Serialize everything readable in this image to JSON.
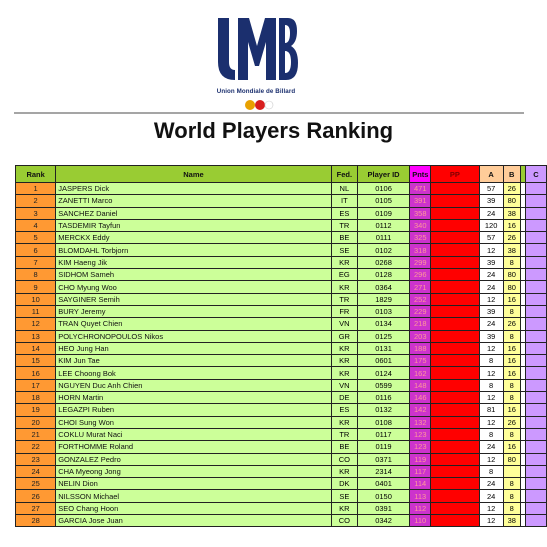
{
  "header": {
    "logo_text": "Union Mondiale de Billard",
    "logo_letters": "UMB",
    "title": "World Players Ranking"
  },
  "table": {
    "columns": [
      "Rank",
      "Name",
      "Fed.",
      "Player ID",
      "Pnts",
      "PP",
      "A",
      "B",
      "C"
    ],
    "rows": [
      {
        "rank": "1",
        "name": "JASPERS Dick",
        "fed": "NL",
        "id": "0106",
        "pnts": "471",
        "a": "57",
        "b": "26"
      },
      {
        "rank": "2",
        "name": "ZANETTI Marco",
        "fed": "IT",
        "id": "0105",
        "pnts": "391",
        "a": "39",
        "b": "80"
      },
      {
        "rank": "3",
        "name": "SANCHEZ Daniel",
        "fed": "ES",
        "id": "0109",
        "pnts": "358",
        "a": "24",
        "b": "38"
      },
      {
        "rank": "4",
        "name": "TASDEMIR Tayfun",
        "fed": "TR",
        "id": "0112",
        "pnts": "340",
        "a": "120",
        "b": "16"
      },
      {
        "rank": "5",
        "name": "MERCKX Eddy",
        "fed": "BE",
        "id": "0111",
        "pnts": "325",
        "a": "57",
        "b": "26"
      },
      {
        "rank": "6",
        "name": "BLOMDAHL Torbjorn",
        "fed": "SE",
        "id": "0102",
        "pnts": "318",
        "a": "12",
        "b": "38"
      },
      {
        "rank": "7",
        "name": "KIM Haeng Jik",
        "fed": "KR",
        "id": "0268",
        "pnts": "299",
        "a": "39",
        "b": "8"
      },
      {
        "rank": "8",
        "name": "SIDHOM Sameh",
        "fed": "EG",
        "id": "0128",
        "pnts": "296",
        "a": "24",
        "b": "80"
      },
      {
        "rank": "9",
        "name": "CHO Myung Woo",
        "fed": "KR",
        "id": "0364",
        "pnts": "271",
        "a": "24",
        "b": "80"
      },
      {
        "rank": "10",
        "name": "SAYGINER Semih",
        "fed": "TR",
        "id": "1829",
        "pnts": "252",
        "a": "12",
        "b": "16"
      },
      {
        "rank": "11",
        "name": "BURY Jeremy",
        "fed": "FR",
        "id": "0103",
        "pnts": "229",
        "a": "39",
        "b": "8"
      },
      {
        "rank": "12",
        "name": "TRAN Quyet Chien",
        "fed": "VN",
        "id": "0134",
        "pnts": "218",
        "a": "24",
        "b": "26"
      },
      {
        "rank": "13",
        "name": "POLYCHRONOPOULOS Nikos",
        "fed": "GR",
        "id": "0125",
        "pnts": "203",
        "a": "39",
        "b": "8"
      },
      {
        "rank": "14",
        "name": "HEO Jung Han",
        "fed": "KR",
        "id": "0131",
        "pnts": "188",
        "a": "12",
        "b": "16"
      },
      {
        "rank": "15",
        "name": "KIM Jun Tae",
        "fed": "KR",
        "id": "0601",
        "pnts": "175",
        "a": "8",
        "b": "16"
      },
      {
        "rank": "16",
        "name": "LEE Choong Bok",
        "fed": "KR",
        "id": "0124",
        "pnts": "162",
        "a": "12",
        "b": "16"
      },
      {
        "rank": "17",
        "name": "NGUYEN Duc Anh Chien",
        "fed": "VN",
        "id": "0599",
        "pnts": "148",
        "a": "8",
        "b": "8"
      },
      {
        "rank": "18",
        "name": "HORN Martin",
        "fed": "DE",
        "id": "0116",
        "pnts": "146",
        "a": "12",
        "b": "8"
      },
      {
        "rank": "19",
        "name": "LEGAZPI Ruben",
        "fed": "ES",
        "id": "0132",
        "pnts": "142",
        "a": "81",
        "b": "16"
      },
      {
        "rank": "20",
        "name": "CHOI Sung Won",
        "fed": "KR",
        "id": "0108",
        "pnts": "132",
        "a": "12",
        "b": "26"
      },
      {
        "rank": "21",
        "name": "COKLU Murat Naci",
        "fed": "TR",
        "id": "0117",
        "pnts": "123",
        "a": "8",
        "b": "8"
      },
      {
        "rank": "22",
        "name": "FORTHOMME Roland",
        "fed": "BE",
        "id": "0119",
        "pnts": "123",
        "a": "24",
        "b": "16"
      },
      {
        "rank": "23",
        "name": "GONZALEZ Pedro",
        "fed": "CO",
        "id": "0371",
        "pnts": "119",
        "a": "12",
        "b": "80"
      },
      {
        "rank": "24",
        "name": "CHA Myeong Jong",
        "fed": "KR",
        "id": "2314",
        "pnts": "117",
        "a": "8",
        "b": ""
      },
      {
        "rank": "25",
        "name": "NELIN Dion",
        "fed": "DK",
        "id": "0401",
        "pnts": "114",
        "a": "24",
        "b": "8"
      },
      {
        "rank": "26",
        "name": "NILSSON Michael",
        "fed": "SE",
        "id": "0150",
        "pnts": "113",
        "a": "24",
        "b": "8"
      },
      {
        "rank": "27",
        "name": "SEO Chang Hoon",
        "fed": "KR",
        "id": "0391",
        "pnts": "112",
        "a": "12",
        "b": "8"
      },
      {
        "rank": "28",
        "name": "GARCIA Jose Juan",
        "fed": "CO",
        "id": "0342",
        "pnts": "110",
        "a": "12",
        "b": "38"
      }
    ]
  },
  "colors": {
    "logo_blue": "#1b2f6e",
    "header_green": "#99cc33",
    "rank_orange": "#ff9933",
    "name_green": "#ccff99",
    "pnts_magenta": "#cc33cc",
    "pp_red": "#ff0000",
    "b_yellow": "#ffff99",
    "c_purple": "#cc99ff"
  }
}
